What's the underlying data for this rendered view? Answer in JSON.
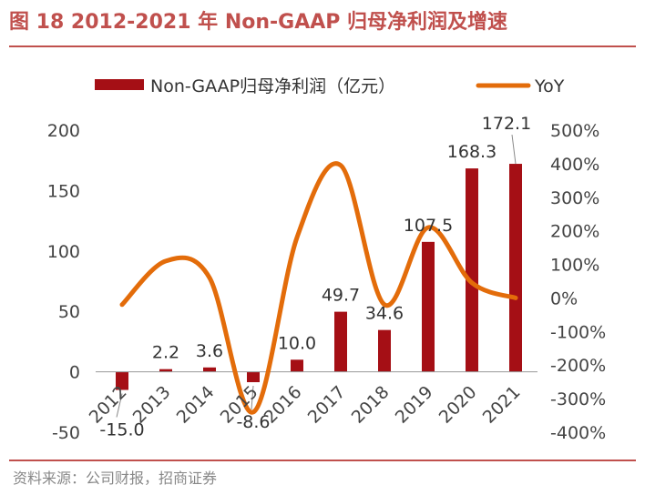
{
  "figure": {
    "title": "图 18 2012-2021 年 Non-GAAP 归母净利润及增速",
    "source": "资料来源：公司财报，招商证券"
  },
  "chart_data": {
    "type": "bar",
    "categories": [
      "2012",
      "2013",
      "2014",
      "2015",
      "2016",
      "2017",
      "2018",
      "2019",
      "2020",
      "2021"
    ],
    "series": [
      {
        "name": "Non-GAAP归母净利润（亿元）",
        "type": "bar",
        "axis": "left",
        "color": "#a50f15",
        "values": [
          -15.0,
          2.2,
          3.6,
          -8.6,
          10.0,
          49.7,
          34.6,
          107.5,
          168.3,
          172.1
        ],
        "labels": [
          "-15.0",
          "2.2",
          "3.6",
          "-8.6",
          "10.0",
          "49.7",
          "34.6",
          "107.5",
          "168.3",
          "172.1"
        ]
      },
      {
        "name": "YoY",
        "type": "line",
        "axis": "right",
        "smooth": true,
        "color": "#e36c0a",
        "values": [
          -20,
          110,
          60,
          -340,
          180,
          395,
          -20,
          210,
          45,
          0
        ]
      }
    ],
    "y_left": {
      "min": -50,
      "max": 200,
      "ticks": [
        "-50",
        "0",
        "50",
        "100",
        "150",
        "200"
      ]
    },
    "y_right": {
      "min": -400,
      "max": 500,
      "ticks": [
        "-400%",
        "-300%",
        "-200%",
        "-100%",
        "0%",
        "100%",
        "200%",
        "300%",
        "400%",
        "500%"
      ]
    },
    "legend_position": "top"
  }
}
